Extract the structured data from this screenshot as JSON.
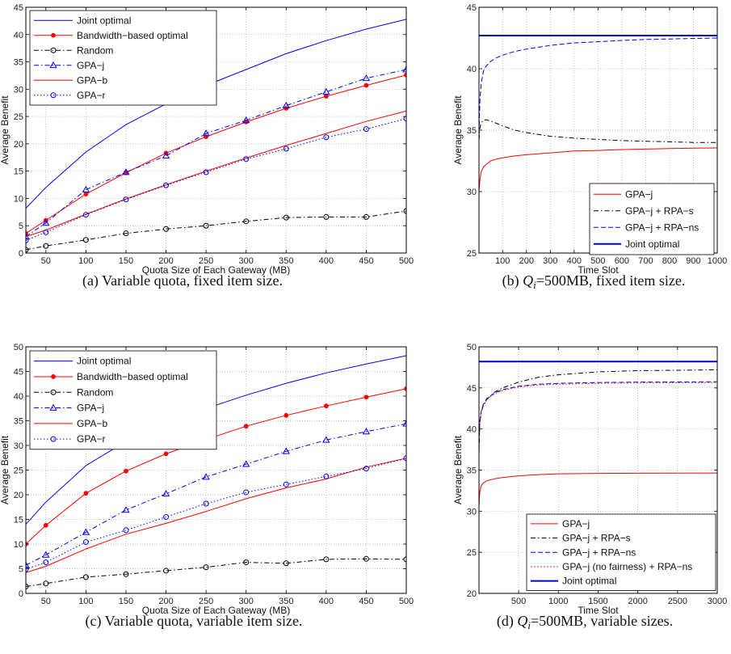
{
  "colors": {
    "blue": "#0000ff",
    "red": "#ff0000",
    "black": "#000000",
    "navy": "#0000cc",
    "grid": "#b4b4b4"
  },
  "chart_data": [
    {
      "type": "line",
      "caption": "(a) Variable quota, fixed item size.",
      "xlabel": "Quota Size of Each Gateway (MB)",
      "ylabel": "Average Benefit",
      "xlim": [
        25,
        500
      ],
      "ylim": [
        0,
        45
      ],
      "xticks": [
        50,
        100,
        150,
        200,
        250,
        300,
        350,
        400,
        450,
        500
      ],
      "yticks": [
        0,
        5,
        10,
        15,
        20,
        25,
        30,
        35,
        40,
        45
      ],
      "grid": true,
      "legend": "top-left",
      "x": [
        25,
        50,
        100,
        150,
        200,
        250,
        300,
        350,
        400,
        450,
        500
      ],
      "series": [
        {
          "name": "Joint optimal",
          "color": "#0000ff",
          "dash": "solid",
          "marker": "none",
          "values": [
            8.2,
            12.0,
            18.5,
            23.5,
            27.3,
            30.7,
            33.6,
            36.5,
            38.9,
            41.0,
            42.8
          ]
        },
        {
          "name": "Bandwidth−based optimal",
          "color": "#ff0000",
          "dash": "solid",
          "marker": "dot",
          "values": [
            3.6,
            6.0,
            10.8,
            14.7,
            18.3,
            21.3,
            24.0,
            26.5,
            28.7,
            30.7,
            32.6
          ]
        },
        {
          "name": "Random",
          "color": "#000000",
          "dash": "dashdot",
          "marker": "circle",
          "values": [
            0.6,
            1.3,
            2.4,
            3.6,
            4.4,
            5.0,
            5.8,
            6.5,
            6.6,
            6.6,
            7.7
          ]
        },
        {
          "name": "GPA−j",
          "color": "#0000ff",
          "dash": "dashdot",
          "marker": "triangle",
          "values": [
            3.0,
            5.5,
            11.6,
            14.8,
            17.8,
            21.9,
            24.3,
            27.0,
            29.5,
            32.0,
            33.6
          ]
        },
        {
          "name": "GPA−b",
          "color": "#ff0000",
          "dash": "solid",
          "marker": "none",
          "values": [
            3.0,
            4.2,
            7.1,
            9.9,
            12.5,
            15.0,
            17.4,
            19.7,
            21.9,
            24.1,
            26.0
          ]
        },
        {
          "name": "GPA−r",
          "color": "#0000ff",
          "dash": "dotted",
          "marker": "circle",
          "values": [
            2.3,
            3.8,
            7.0,
            9.8,
            12.4,
            14.8,
            17.2,
            19.1,
            21.2,
            22.7,
            24.6
          ]
        }
      ]
    },
    {
      "type": "line",
      "caption": "(b) Qi=500MB, fixed item size.",
      "caption_prefix": "(b) ",
      "caption_sym": "Q",
      "caption_sub": "i",
      "caption_rest": "=500MB, fixed item size.",
      "xlabel": "Time Slot",
      "ylabel": "Average Benefit",
      "xlim": [
        1,
        1000
      ],
      "ylim": [
        25,
        45
      ],
      "xticks": [
        100,
        200,
        300,
        400,
        500,
        600,
        700,
        800,
        900,
        1000
      ],
      "yticks": [
        25,
        30,
        35,
        40,
        45
      ],
      "grid": true,
      "legend": "bottom-right",
      "x": [
        1,
        5,
        10,
        20,
        30,
        50,
        75,
        100,
        150,
        200,
        300,
        400,
        500,
        600,
        700,
        800,
        900,
        1000
      ],
      "series": [
        {
          "name": "GPA−j",
          "color": "#ff0000",
          "dash": "solid",
          "marker": "none",
          "values": [
            30.0,
            31.0,
            31.6,
            32.0,
            32.2,
            32.5,
            32.65,
            32.75,
            32.9,
            33.0,
            33.15,
            33.3,
            33.35,
            33.42,
            33.46,
            33.5,
            33.53,
            33.55
          ]
        },
        {
          "name": "GPA−j + RPA−s",
          "color": "#000000",
          "dash": "dashdot",
          "marker": "none",
          "values": [
            34.2,
            35.2,
            35.6,
            35.8,
            35.85,
            35.75,
            35.55,
            35.35,
            35.0,
            34.8,
            34.5,
            34.35,
            34.25,
            34.15,
            34.1,
            34.05,
            34.0,
            34.0
          ]
        },
        {
          "name": "GPA−j + RPA−ns",
          "color": "#0000ff",
          "dash": "dashed",
          "marker": "none",
          "values": [
            34.8,
            37.5,
            38.8,
            39.8,
            40.2,
            40.6,
            40.9,
            41.1,
            41.4,
            41.6,
            41.9,
            42.1,
            42.2,
            42.3,
            42.38,
            42.42,
            42.46,
            42.5
          ]
        },
        {
          "name": "Joint optimal",
          "color": "#0000cc",
          "dash": "solid",
          "marker": "none",
          "width": 2,
          "values": [
            42.7,
            42.7,
            42.7,
            42.7,
            42.7,
            42.7,
            42.7,
            42.7,
            42.7,
            42.7,
            42.7,
            42.7,
            42.7,
            42.7,
            42.7,
            42.7,
            42.7,
            42.7
          ]
        }
      ]
    },
    {
      "type": "line",
      "caption": "(c) Variable quota, variable item size.",
      "xlabel": "Quota Size of Each Gateway (MB)",
      "ylabel": "Average Benefit",
      "xlim": [
        25,
        500
      ],
      "ylim": [
        0,
        50
      ],
      "xticks": [
        50,
        100,
        150,
        200,
        250,
        300,
        350,
        400,
        450,
        500
      ],
      "yticks": [
        0,
        5,
        10,
        15,
        20,
        25,
        30,
        35,
        40,
        45,
        50
      ],
      "grid": true,
      "legend": "top-left",
      "x": [
        25,
        50,
        100,
        150,
        200,
        250,
        300,
        350,
        400,
        450,
        500
      ],
      "series": [
        {
          "name": "Joint optimal",
          "color": "#0000ff",
          "dash": "solid",
          "marker": "none",
          "values": [
            14.0,
            18.5,
            25.9,
            30.8,
            34.5,
            37.5,
            40.2,
            42.6,
            44.7,
            46.5,
            48.2
          ]
        },
        {
          "name": "Bandwidth−based optimal",
          "color": "#ff0000",
          "dash": "solid",
          "marker": "dot",
          "values": [
            10.0,
            13.8,
            20.3,
            24.8,
            28.3,
            31.2,
            33.9,
            36.1,
            38.0,
            39.8,
            41.5
          ]
        },
        {
          "name": "Random",
          "color": "#000000",
          "dash": "dashdot",
          "marker": "circle",
          "values": [
            1.4,
            2.0,
            3.3,
            3.9,
            4.6,
            5.3,
            6.3,
            6.1,
            6.9,
            7.0,
            6.9
          ]
        },
        {
          "name": "GPA−j",
          "color": "#0000ff",
          "dash": "dashdot",
          "marker": "triangle",
          "values": [
            5.7,
            7.8,
            12.4,
            16.9,
            20.2,
            23.6,
            26.2,
            28.8,
            31.1,
            32.8,
            34.4
          ]
        },
        {
          "name": "GPA−b",
          "color": "#ff0000",
          "dash": "solid",
          "marker": "none",
          "values": [
            4.2,
            5.5,
            9.0,
            12.0,
            14.2,
            16.6,
            19.2,
            21.4,
            23.2,
            25.6,
            27.4
          ]
        },
        {
          "name": "GPA−r",
          "color": "#0000ff",
          "dash": "dotted",
          "marker": "circle",
          "values": [
            4.9,
            6.3,
            10.4,
            12.8,
            15.5,
            18.2,
            20.5,
            22.1,
            23.7,
            25.3,
            27.4
          ]
        }
      ]
    },
    {
      "type": "line",
      "caption": "(d) Qi=500MB, variable sizes.",
      "caption_prefix": "(d) ",
      "caption_sym": "Q",
      "caption_sub": "i",
      "caption_rest": "=500MB, variable sizes.",
      "xlabel": "Time Slot",
      "ylabel": "Average Benefit",
      "xlim": [
        1,
        3000
      ],
      "ylim": [
        20,
        50
      ],
      "xticks": [
        500,
        1000,
        1500,
        2000,
        2500,
        3000
      ],
      "yticks": [
        20,
        25,
        30,
        35,
        40,
        45,
        50
      ],
      "grid": true,
      "legend": "bottom-right",
      "x": [
        1,
        10,
        25,
        50,
        100,
        200,
        300,
        500,
        750,
        1000,
        1500,
        2000,
        2500,
        3000
      ],
      "series": [
        {
          "name": "GPA−j",
          "color": "#ff0000",
          "dash": "solid",
          "marker": "none",
          "values": [
            30.5,
            32.3,
            33.0,
            33.4,
            33.7,
            33.95,
            34.1,
            34.3,
            34.45,
            34.55,
            34.6,
            34.62,
            34.63,
            34.65
          ]
        },
        {
          "name": "GPA−j + RPA−s",
          "color": "#000000",
          "dash": "dashdot",
          "marker": "none",
          "values": [
            37.0,
            40.5,
            41.8,
            42.7,
            43.6,
            44.5,
            45.0,
            45.7,
            46.3,
            46.6,
            46.95,
            47.1,
            47.15,
            47.2
          ]
        },
        {
          "name": "GPA−j + RPA−ns",
          "color": "#0000ff",
          "dash": "dashed",
          "marker": "none",
          "values": [
            37.3,
            40.8,
            42.0,
            42.9,
            43.7,
            44.4,
            44.8,
            45.2,
            45.45,
            45.55,
            45.65,
            45.7,
            45.72,
            45.75
          ]
        },
        {
          "name": "GPA−j (no fairness) + RPA−ns",
          "color": "#ff0000",
          "dash": "dotted",
          "marker": "none",
          "values": [
            37.2,
            40.6,
            41.9,
            42.8,
            43.6,
            44.3,
            44.7,
            45.1,
            45.35,
            45.45,
            45.55,
            45.6,
            45.62,
            45.65
          ]
        },
        {
          "name": "Joint optimal",
          "color": "#0000cc",
          "dash": "solid",
          "marker": "none",
          "width": 2,
          "values": [
            48.2,
            48.2,
            48.2,
            48.2,
            48.2,
            48.2,
            48.2,
            48.2,
            48.2,
            48.2,
            48.2,
            48.2,
            48.2,
            48.2
          ]
        }
      ]
    }
  ]
}
